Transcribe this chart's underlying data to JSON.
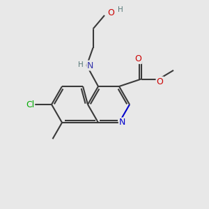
{
  "bg_color": "#e8e8e8",
  "bond_color": "#3a3a3a",
  "bond_width": 1.5,
  "atom_colors": {
    "N_ring": "#0000cc",
    "N_amine": "#3333aa",
    "O": "#cc0000",
    "Cl": "#00aa00",
    "H": "#557777"
  },
  "font_size_atom": 9.0,
  "font_size_small": 7.5
}
